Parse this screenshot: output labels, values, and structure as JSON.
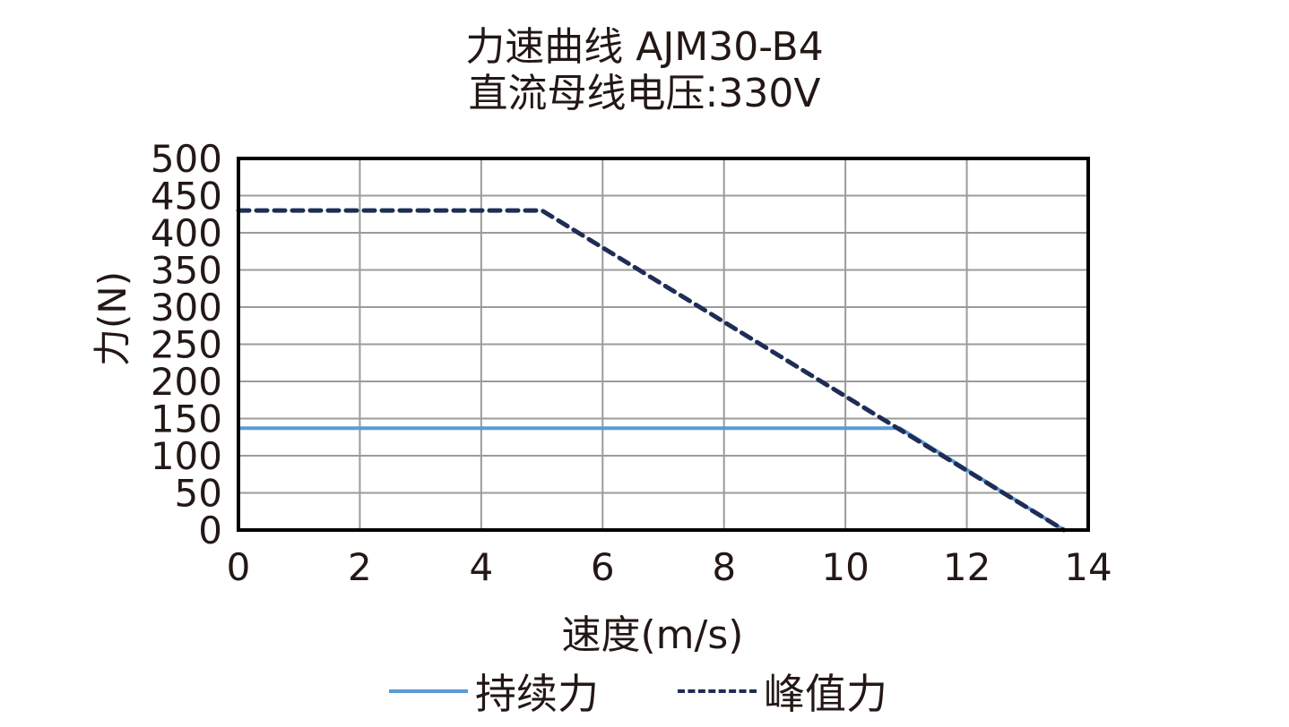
{
  "chart_data": {
    "type": "line",
    "title": "力速曲线 AJM30-B4",
    "subtitle": "直流母线电压:330V",
    "xlabel": "速度(m/s)",
    "ylabel": "力(N)",
    "xlim": [
      0,
      14
    ],
    "ylim": [
      0,
      500
    ],
    "x_ticks": [
      0,
      2,
      4,
      6,
      8,
      10,
      12,
      14
    ],
    "y_ticks": [
      0,
      50,
      100,
      150,
      200,
      250,
      300,
      350,
      400,
      450,
      500
    ],
    "grid": true,
    "legend_position": "bottom",
    "series": [
      {
        "name": "持续力",
        "style": "solid",
        "color": "#5b9bd5",
        "x": [
          0,
          10.9,
          13.6
        ],
        "y": [
          137,
          137,
          0
        ]
      },
      {
        "name": "峰值力",
        "style": "dashed",
        "color": "#1f2d56",
        "x": [
          0,
          5.0,
          13.6
        ],
        "y": [
          430,
          430,
          0
        ]
      }
    ]
  },
  "legend": {
    "continuous_label": "持续力",
    "peak_label": "峰值力"
  }
}
